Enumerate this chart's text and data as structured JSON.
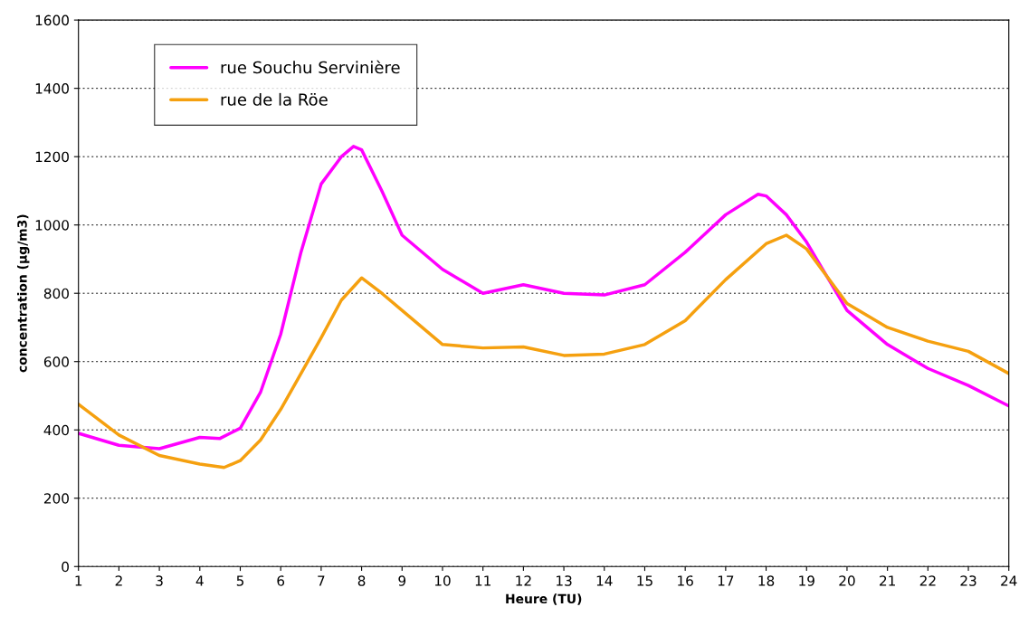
{
  "chart_data": {
    "type": "line",
    "xlabel": "Heure (TU)",
    "ylabel": "concentration (µg/m3)",
    "series": [
      {
        "name": "rue Souchu Servinière",
        "color": "#ff00ff",
        "x": [
          1,
          2,
          3,
          4,
          4.5,
          5,
          5.5,
          6,
          6.5,
          7,
          7.5,
          7.8,
          8,
          8.5,
          9,
          10,
          11,
          12,
          13,
          14,
          15,
          16,
          17,
          17.8,
          18,
          18.5,
          19,
          20,
          21,
          22,
          23,
          24
        ],
        "values": [
          390,
          355,
          345,
          378,
          375,
          405,
          510,
          680,
          920,
          1120,
          1200,
          1230,
          1220,
          1100,
          970,
          870,
          800,
          825,
          800,
          795,
          825,
          920,
          1030,
          1090,
          1085,
          1030,
          950,
          750,
          650,
          580,
          530,
          470
        ]
      },
      {
        "name": "rue de la Röe",
        "color": "#f5a00f",
        "x": [
          1,
          2,
          3,
          4,
          4.6,
          5,
          5.5,
          6,
          7,
          7.5,
          8,
          8.5,
          9,
          10,
          11,
          12,
          13,
          14,
          15,
          16,
          17,
          18,
          18.5,
          19,
          20,
          21,
          22,
          23,
          24
        ],
        "values": [
          475,
          385,
          325,
          300,
          290,
          310,
          370,
          460,
          670,
          780,
          845,
          800,
          750,
          650,
          640,
          643,
          618,
          622,
          650,
          720,
          840,
          945,
          970,
          930,
          770,
          700,
          660,
          630,
          565
        ]
      }
    ],
    "xlim": [
      1,
      24
    ],
    "xticks": [
      1,
      2,
      3,
      4,
      5,
      6,
      7,
      8,
      9,
      10,
      11,
      12,
      13,
      14,
      15,
      16,
      17,
      18,
      19,
      20,
      21,
      22,
      23,
      24
    ],
    "ylim": [
      0,
      1600
    ],
    "yticks": [
      0,
      200,
      400,
      600,
      800,
      1000,
      1200,
      1400,
      1600
    ],
    "grid": "y",
    "legend": "top left",
    "line_style": "solid",
    "marker": "none"
  }
}
